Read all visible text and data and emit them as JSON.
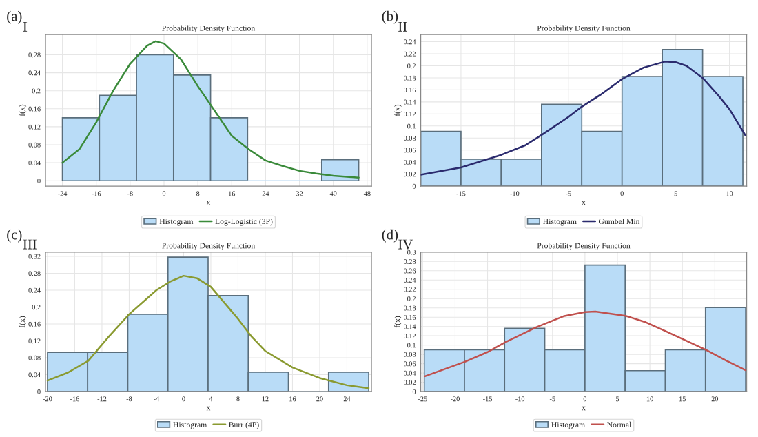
{
  "chart_data": [
    {
      "type": "histogram",
      "title": "Probability Density Function",
      "annotations": [
        "(a)",
        "I"
      ],
      "xlabel": "x",
      "ylabel": "f(x)",
      "legend": "bottom",
      "grid": true,
      "xlim": [
        -28,
        49
      ],
      "ylim": [
        -0.012,
        0.325
      ],
      "xticks": [
        -24,
        -16,
        -8,
        0,
        8,
        16,
        24,
        32,
        40,
        48
      ],
      "yticks": [
        0,
        0.04,
        0.08,
        0.12,
        0.16,
        0.2,
        0.24,
        0.28
      ],
      "series": [
        {
          "name": "Histogram",
          "color": "#b9dcf7",
          "bins": [
            -24,
            -15.25,
            -6.5,
            2.25,
            11,
            19.75,
            28.5,
            37.25,
            46
          ],
          "values": [
            0.14,
            0.19,
            0.28,
            0.235,
            0.14,
            0,
            0,
            0.047
          ]
        },
        {
          "name": "Log-Logistic (3P)",
          "type": "line",
          "color": "#3a8a3a",
          "x": [
            -24,
            -20,
            -16,
            -12,
            -8,
            -4,
            -2,
            0,
            4,
            8,
            12,
            16,
            20,
            24,
            28,
            32,
            36,
            40,
            46
          ],
          "values": [
            0.04,
            0.07,
            0.13,
            0.2,
            0.26,
            0.3,
            0.31,
            0.305,
            0.27,
            0.21,
            0.155,
            0.1,
            0.07,
            0.045,
            0.033,
            0.022,
            0.016,
            0.011,
            0.007
          ]
        }
      ]
    },
    {
      "type": "histogram",
      "title": "Probability Density Function",
      "annotations": [
        "(b)",
        "II"
      ],
      "xlabel": "x",
      "ylabel": "f(x)",
      "legend": "bottom",
      "grid": true,
      "xlim": [
        -18.75,
        11.6
      ],
      "ylim": [
        0,
        0.252
      ],
      "xticks": [
        -15,
        -10,
        -5,
        0,
        5,
        10
      ],
      "yticks": [
        0,
        0.02,
        0.04,
        0.06,
        0.08,
        0.1,
        0.12,
        0.14,
        0.16,
        0.18,
        0.2,
        0.22,
        0.24
      ],
      "series": [
        {
          "name": "Histogram",
          "color": "#b9dcf7",
          "bins": [
            -18.75,
            -15,
            -11.25,
            -7.5,
            -3.75,
            0,
            3.75,
            7.5,
            11.25
          ],
          "values": [
            0.091,
            0.045,
            0.045,
            0.136,
            0.091,
            0.182,
            0.227,
            0.182
          ]
        },
        {
          "name": "Gumbel Min",
          "type": "line",
          "color": "#2b2b6e",
          "x": [
            -18.75,
            -15,
            -11.25,
            -9,
            -7.5,
            -5,
            -3.75,
            -2,
            0,
            2,
            4,
            5,
            6,
            7.5,
            9,
            10,
            11.5
          ],
          "values": [
            0.019,
            0.031,
            0.052,
            0.068,
            0.085,
            0.115,
            0.132,
            0.152,
            0.178,
            0.197,
            0.207,
            0.206,
            0.2,
            0.18,
            0.15,
            0.128,
            0.084
          ]
        }
      ]
    },
    {
      "type": "histogram",
      "title": "Probability Density Function",
      "annotations": [
        "(c)",
        "III"
      ],
      "xlabel": "x",
      "ylabel": "f(x)",
      "legend": "bottom",
      "grid": true,
      "xlim": [
        -20.3,
        27.6
      ],
      "ylim": [
        0,
        0.33
      ],
      "xticks": [
        -20,
        -16,
        -12,
        -8,
        -4,
        0,
        4,
        8,
        12,
        16,
        20,
        24
      ],
      "yticks": [
        0,
        0.04,
        0.08,
        0.12,
        0.16,
        0.2,
        0.24,
        0.28,
        0.32
      ],
      "series": [
        {
          "name": "Histogram",
          "color": "#b9dcf7",
          "bins": [
            -20,
            -14.1,
            -8.2,
            -2.3,
            3.6,
            9.5,
            15.4,
            21.3,
            27.2
          ],
          "values": [
            0.093,
            0.093,
            0.183,
            0.318,
            0.227,
            0.046,
            0,
            0.046
          ]
        },
        {
          "name": "Burr (4P)",
          "type": "line",
          "color": "#8a9a30",
          "x": [
            -20,
            -17,
            -14,
            -11,
            -8,
            -4,
            -2,
            0,
            2,
            4,
            6,
            8,
            10,
            12,
            16,
            20,
            24,
            27.2
          ],
          "values": [
            0.026,
            0.045,
            0.073,
            0.13,
            0.183,
            0.24,
            0.26,
            0.274,
            0.268,
            0.248,
            0.21,
            0.172,
            0.13,
            0.096,
            0.057,
            0.032,
            0.015,
            0.008
          ]
        }
      ]
    },
    {
      "type": "histogram",
      "title": "Probability Density Function",
      "annotations": [
        "(d)",
        "IV"
      ],
      "xlabel": "x",
      "ylabel": "f(x)",
      "legend": "bottom",
      "grid": true,
      "xlim": [
        -25.3,
        24.9
      ],
      "ylim": [
        0,
        0.3
      ],
      "xticks": [
        -25,
        -20,
        -15,
        -10,
        -5,
        0,
        5,
        10,
        15,
        20
      ],
      "yticks": [
        0,
        0.02,
        0.04,
        0.06,
        0.08,
        0.1,
        0.12,
        0.14,
        0.16,
        0.18,
        0.2,
        0.22,
        0.24,
        0.26,
        0.28,
        0.3
      ],
      "series": [
        {
          "name": "Histogram",
          "color": "#b9dcf7",
          "bins": [
            -24.75,
            -18.56,
            -12.38,
            -6.19,
            0,
            6.19,
            12.38,
            18.56,
            24.75
          ],
          "values": [
            0.09,
            0.09,
            0.136,
            0.09,
            0.272,
            0.045,
            0.09,
            0.181
          ]
        },
        {
          "name": "Normal",
          "type": "line",
          "color": "#c0504d",
          "x": [
            -24.65,
            -18.5,
            -15,
            -12.3,
            -7.4,
            -3.3,
            0,
            1.6,
            6.25,
            9.2,
            12.4,
            15.5,
            18.6,
            21.7,
            24.75
          ],
          "values": [
            0.033,
            0.064,
            0.085,
            0.106,
            0.139,
            0.162,
            0.171,
            0.172,
            0.163,
            0.15,
            0.13,
            0.11,
            0.09,
            0.067,
            0.046
          ]
        }
      ]
    }
  ]
}
